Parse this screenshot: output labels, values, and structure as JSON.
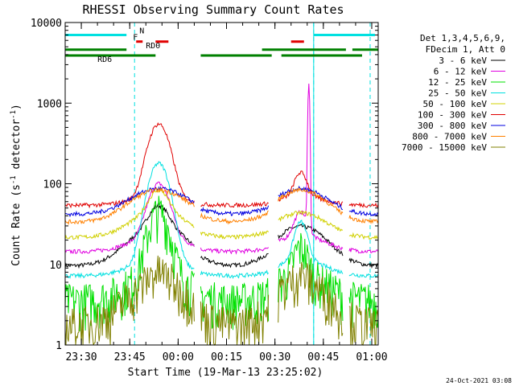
{
  "chart_data": {
    "type": "line",
    "title": "RHESSI Observing Summary Count Rates",
    "xlabel": "Start Time (19-Mar-13 23:25:02)",
    "ylabel_main": "Count Rate (s",
    "ylabel_sup1": "-1",
    "ylabel_mid": " detector",
    "ylabel_sup2": "-1",
    "ylabel_end": ")",
    "y_scale": "log",
    "ylim": [
      1,
      10000
    ],
    "xlim_minutes": [
      -35.0,
      62.0
    ],
    "y_ticks": [
      {
        "value": 1,
        "label": "1"
      },
      {
        "value": 10,
        "label": "10"
      },
      {
        "value": 100,
        "label": "100"
      },
      {
        "value": 1000,
        "label": "1000"
      },
      {
        "value": 10000,
        "label": "10000"
      }
    ],
    "x_ticks": [
      {
        "minute": -30,
        "label": "23:30"
      },
      {
        "minute": -15,
        "label": "23:45"
      },
      {
        "minute": 0,
        "label": "00:00"
      },
      {
        "minute": 15,
        "label": "00:15"
      },
      {
        "minute": 30,
        "label": "00:30"
      },
      {
        "minute": 45,
        "label": "00:45"
      },
      {
        "minute": 60,
        "label": "01:00"
      }
    ],
    "legend_header": [
      "Det 1,3,4,5,6,9,",
      "FDecim 1, Att 0"
    ],
    "series": [
      {
        "name": "3 - 6 keV",
        "color": "#000000",
        "base": 28,
        "flare1": 1.8,
        "flare2": 1.0,
        "decay": 7,
        "min": 8
      },
      {
        "name": "6 - 12 keV",
        "color": "#e000e0",
        "base": 20,
        "flare1": 4.5,
        "flare2": 2.0,
        "decay": 9,
        "min": 12
      },
      {
        "name": "12 - 25 keV",
        "color": "#00e000",
        "base": 7,
        "flare1": 6.0,
        "flare2": 2.2,
        "decay": 3,
        "min": 3
      },
      {
        "name": "25 - 50 keV",
        "color": "#00e0e0",
        "base": 10,
        "flare1": 16,
        "flare2": 3.0,
        "decay": 4,
        "min": 6
      },
      {
        "name": "50 - 100 keV",
        "color": "#d0d000",
        "base": 40,
        "flare1": 1.9,
        "flare2": 1.0,
        "decay": 7,
        "min": 18
      },
      {
        "name": "100 - 300 keV",
        "color": "#e00000",
        "base": 60,
        "flare1": 8.0,
        "flare2": 2.0,
        "decay": 7,
        "min": 45
      },
      {
        "name": "300 - 800 keV",
        "color": "#0000e0",
        "base": 80,
        "flare1": 1.0,
        "flare2": 1.0,
        "decay": 7,
        "min": 35
      },
      {
        "name": "800 - 7000 keV",
        "color": "#ff8000",
        "base": 78,
        "flare1": 1.0,
        "flare2": 1.0,
        "decay": 7,
        "min": 28
      },
      {
        "name": "7000 - 15000 keV",
        "color": "#808000",
        "base": 6,
        "flare1": 1.3,
        "flare2": 1.2,
        "decay": 3,
        "min": 1.5
      }
    ],
    "flags": [
      {
        "label": "N",
        "color": "#00e0e0",
        "value": 7000,
        "segments": [
          [
            -35,
            -16
          ],
          [
            42,
            61
          ]
        ]
      },
      {
        "label": "F",
        "color": "#e00000",
        "value": 5800,
        "segments": [
          [
            -13,
            -11
          ],
          [
            -7,
            -3
          ],
          [
            35,
            39
          ]
        ]
      },
      {
        "label": "RD0",
        "color": "#008000",
        "value": 4600,
        "segments": [
          [
            -35,
            -16
          ],
          [
            26,
            52
          ],
          [
            54,
            62
          ]
        ]
      },
      {
        "label": "RD6",
        "color": "#008000",
        "value": 3900,
        "segments": [
          [
            -35,
            -7
          ],
          [
            7,
            29
          ],
          [
            32,
            57
          ]
        ]
      }
    ],
    "vlines_minutes": [
      -13.5,
      42.0,
      59.5
    ],
    "solid_vlines_minutes": [
      -35.0,
      42.0
    ]
  },
  "timestamp": "24-Oct-2021 03:08"
}
